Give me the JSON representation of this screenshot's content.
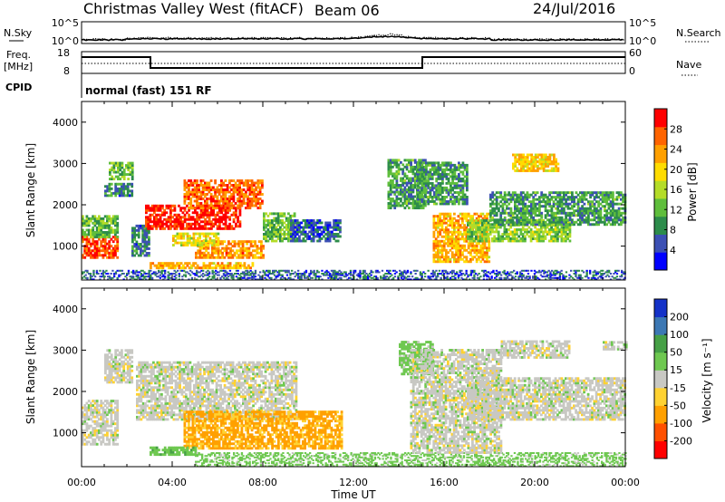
{
  "header": {
    "site": "Christmas Valley West (fitACF)",
    "beam": "Beam 06",
    "date": "24/Jul/2016"
  },
  "top_panels": {
    "nsky_label": "N.Sky",
    "nsky_ticks": [
      "10^5",
      "10^0"
    ],
    "nsearch_label": "N.Search",
    "nsearch_ticks": [
      "10^5",
      "10^0"
    ],
    "freq_label_1": "Freq.",
    "freq_label_2": "[MHz]",
    "freq_ticks": [
      "18",
      "8"
    ],
    "nave_label": "Nave",
    "nave_ticks": [
      "60",
      "0"
    ],
    "cpid_label": "CPID",
    "cpid_text": "normal (fast) 151 RF"
  },
  "colors": {
    "power": [
      "#0000ff",
      "#3c50b4",
      "#2d8c4b",
      "#5fbe3c",
      "#b4dc28",
      "#ffdc00",
      "#ffa000",
      "#ff6400",
      "#ff0000"
    ],
    "velocity": [
      "#ff0000",
      "#ff5000",
      "#ffa000",
      "#ffd232",
      "#c8c8c3",
      "#6ec850",
      "#46a046",
      "#3c78b4",
      "#1432c8"
    ],
    "ground_scatter": "#c8c8c3"
  },
  "chart_data": [
    {
      "type": "heatmap",
      "name": "power",
      "ylabel": "Slant Range [km]",
      "ylim": [
        180,
        4500
      ],
      "yticks": [
        1000,
        2000,
        3000,
        4000
      ],
      "xlim": [
        0,
        24
      ],
      "xticks": [
        "00:00",
        "04:00",
        "08:00",
        "12:00",
        "16:00",
        "20:00",
        "00:00"
      ],
      "colorbar": {
        "label": "Power [dB]",
        "range": [
          0,
          32
        ],
        "ticks": [
          4,
          8,
          12,
          16,
          20,
          24,
          28
        ]
      },
      "regions": [
        {
          "t": [
            0.0,
            1.6
          ],
          "r": [
            700,
            1200
          ],
          "level": 28
        },
        {
          "t": [
            0.0,
            1.6
          ],
          "r": [
            1200,
            1700
          ],
          "level": 12
        },
        {
          "t": [
            1.0,
            2.2
          ],
          "r": [
            2200,
            2500
          ],
          "level": 8
        },
        {
          "t": [
            1.2,
            2.2
          ],
          "r": [
            2600,
            3000
          ],
          "level": 12
        },
        {
          "t": [
            2.2,
            3.0
          ],
          "r": [
            750,
            1500
          ],
          "level": 8
        },
        {
          "t": [
            2.8,
            7.0
          ],
          "r": [
            1400,
            2000
          ],
          "level": 30
        },
        {
          "t": [
            4.5,
            8.0
          ],
          "r": [
            1900,
            2600
          ],
          "level": 26
        },
        {
          "t": [
            5.0,
            8.0
          ],
          "r": [
            700,
            1100
          ],
          "level": 24
        },
        {
          "t": [
            4.0,
            6.0
          ],
          "r": [
            1000,
            1300
          ],
          "level": 18
        },
        {
          "t": [
            8.0,
            9.4
          ],
          "r": [
            1100,
            1800
          ],
          "level": 12
        },
        {
          "t": [
            9.2,
            11.4
          ],
          "r": [
            1100,
            1600
          ],
          "level": 6
        },
        {
          "t": [
            3.0,
            7.5
          ],
          "r": [
            450,
            600
          ],
          "level": 22
        },
        {
          "t": [
            13.5,
            15.2
          ],
          "r": [
            1900,
            3100
          ],
          "level": 10
        },
        {
          "t": [
            14.8,
            17.0
          ],
          "r": [
            2000,
            3000
          ],
          "level": 10
        },
        {
          "t": [
            15.5,
            18.0
          ],
          "r": [
            600,
            1800
          ],
          "level": 22
        },
        {
          "t": [
            17.0,
            21.5
          ],
          "r": [
            1100,
            1600
          ],
          "level": 14
        },
        {
          "t": [
            18.0,
            24.0
          ],
          "r": [
            1500,
            2300
          ],
          "level": 10
        },
        {
          "t": [
            19.0,
            21.0
          ],
          "r": [
            2800,
            3200
          ],
          "level": 20
        },
        {
          "t": [
            0.0,
            24.0
          ],
          "r": [
            180,
            400
          ],
          "level": 6
        }
      ]
    },
    {
      "type": "heatmap",
      "name": "velocity",
      "ylabel": "Slant Range [km]",
      "ylim": [
        180,
        4500
      ],
      "yticks": [
        1000,
        2000,
        3000,
        4000
      ],
      "xlim": [
        0,
        24
      ],
      "xticks": [
        "00:00",
        "04:00",
        "08:00",
        "12:00",
        "16:00",
        "20:00",
        "00:00"
      ],
      "xlabel": "Time UT",
      "colorbar": {
        "label": "Velocity [m s⁻¹]",
        "ticks": [
          "200",
          "100",
          "50",
          "15",
          "-15",
          "-50",
          "-100",
          "-200"
        ]
      },
      "regions": [
        {
          "t": [
            0.0,
            1.6
          ],
          "r": [
            700,
            1800
          ],
          "v": 0
        },
        {
          "t": [
            1.0,
            2.2
          ],
          "r": [
            2200,
            3000
          ],
          "v": 0
        },
        {
          "t": [
            2.4,
            9.5
          ],
          "r": [
            1300,
            2700
          ],
          "v": 0
        },
        {
          "t": [
            4.5,
            11.5
          ],
          "r": [
            600,
            1500
          ],
          "v": -60
        },
        {
          "t": [
            3.0,
            5.0
          ],
          "r": [
            450,
            650
          ],
          "v": 40
        },
        {
          "t": [
            5.0,
            24.0
          ],
          "r": [
            180,
            500
          ],
          "v": 30
        },
        {
          "t": [
            14.0,
            15.5
          ],
          "r": [
            2400,
            3200
          ],
          "v": 30
        },
        {
          "t": [
            14.5,
            18.5
          ],
          "r": [
            500,
            3000
          ],
          "v": 0
        },
        {
          "t": [
            17.0,
            24.0
          ],
          "r": [
            1300,
            2300
          ],
          "v": 0
        },
        {
          "t": [
            18.5,
            21.5
          ],
          "r": [
            2800,
            3200
          ],
          "v": 0
        },
        {
          "t": [
            23.0,
            24.0
          ],
          "r": [
            3000,
            3200
          ],
          "v": 0
        }
      ]
    }
  ]
}
